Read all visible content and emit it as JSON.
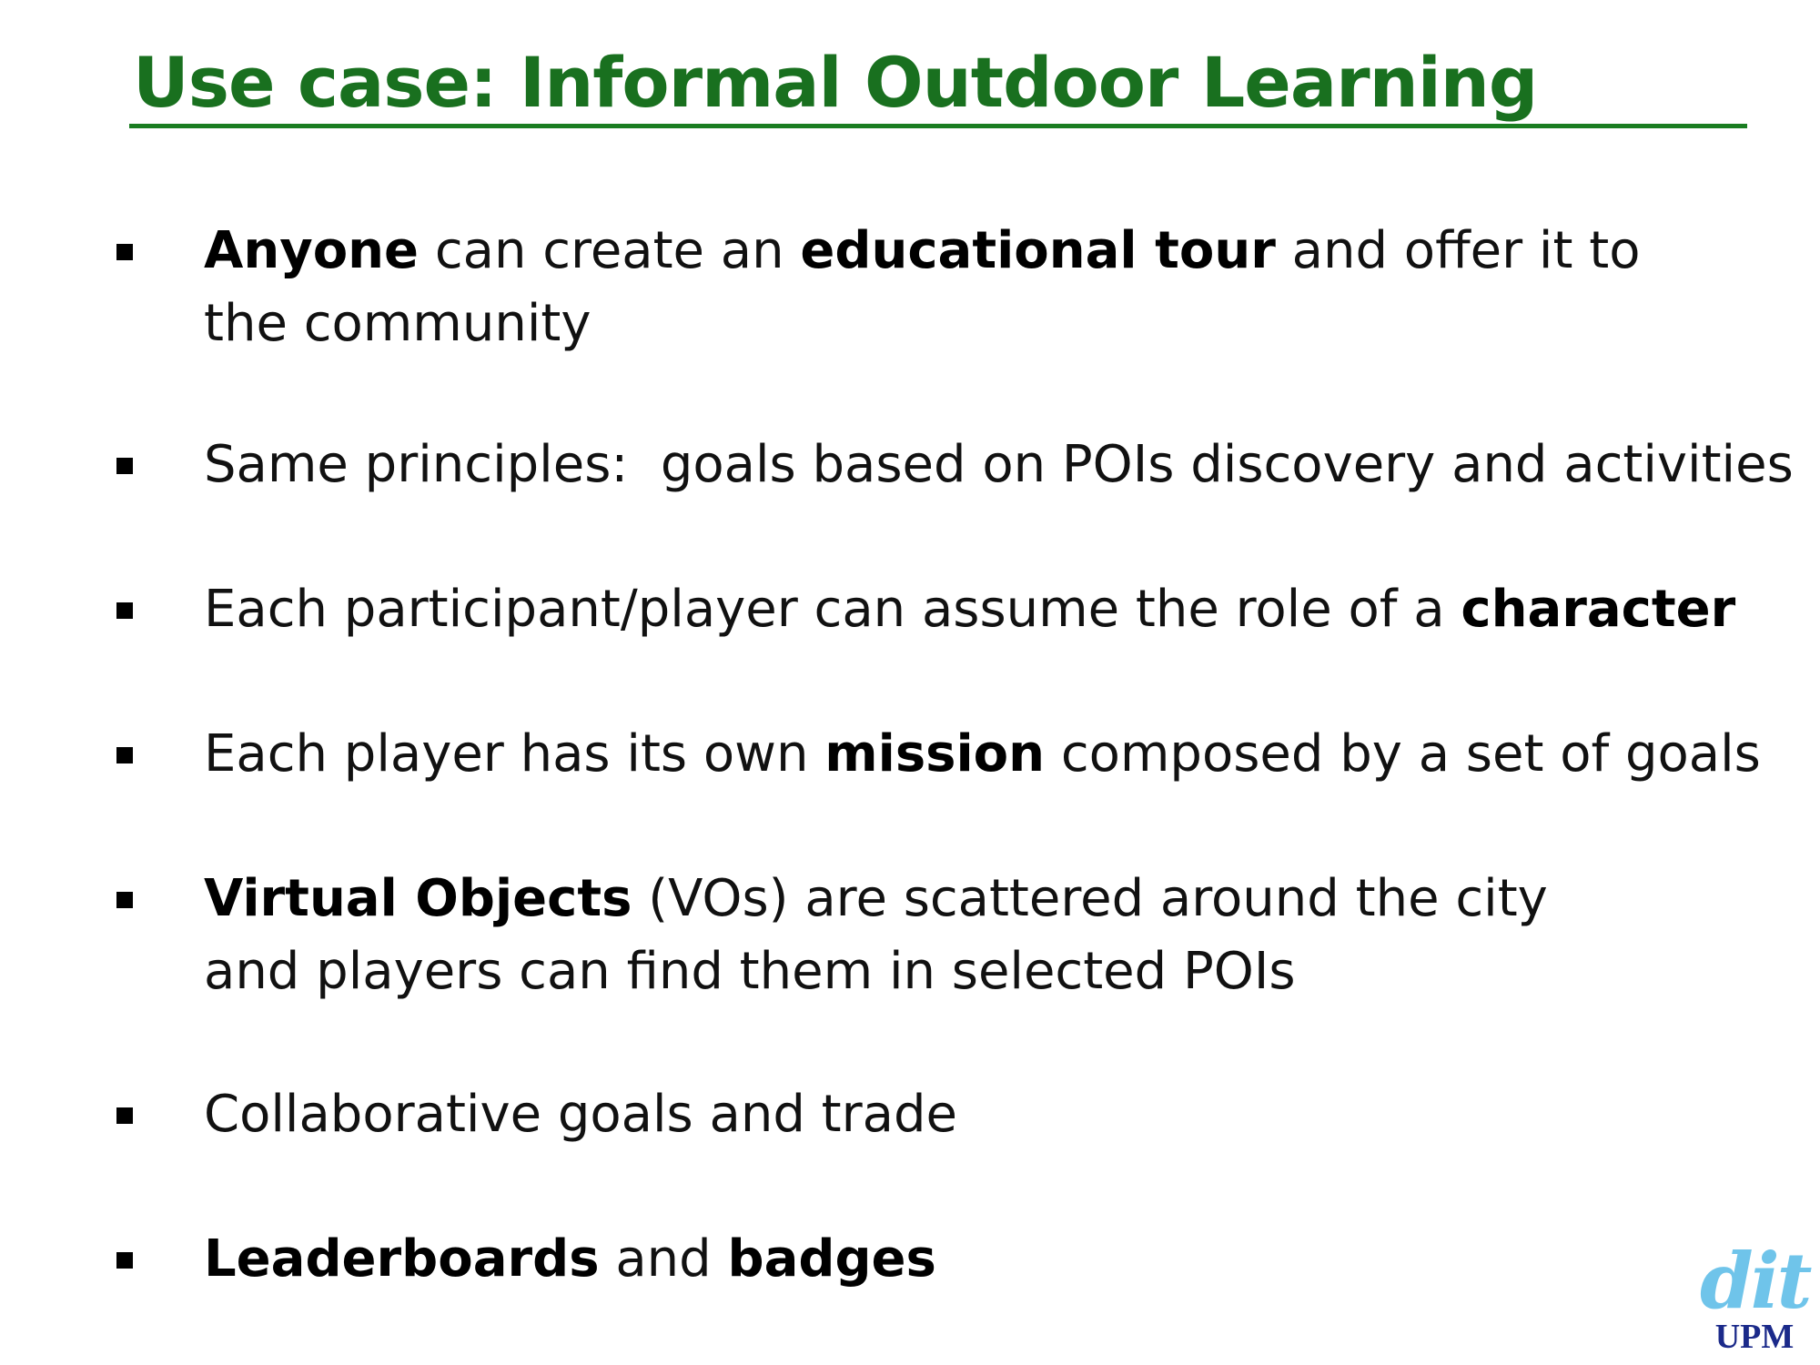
{
  "slide": {
    "title": "Use case: Informal Outdoor Learning",
    "bullets": [
      {
        "parts": [
          {
            "text": "Anyone",
            "bold": true
          },
          {
            "text": " can create an ",
            "bold": false
          },
          {
            "text": "educational tour",
            "bold": true
          },
          {
            "text": " and offer it to the community",
            "bold": false
          }
        ]
      },
      {
        "parts": [
          {
            "text": "Same principles:  goals based on POIs discovery and activities",
            "bold": false
          }
        ]
      },
      {
        "parts": [
          {
            "text": "Each participant/player can assume the role of a ",
            "bold": false
          },
          {
            "text": "character",
            "bold": true
          }
        ]
      },
      {
        "parts": [
          {
            "text": "Each player has its own ",
            "bold": false
          },
          {
            "text": "mission",
            "bold": true
          },
          {
            "text": " composed by a set of goals",
            "bold": false
          }
        ]
      },
      {
        "parts": [
          {
            "text": "Virtual Objects",
            "bold": true
          },
          {
            "text": " (VOs) are scattered around the city and players can find them in selected POIs",
            "bold": false
          }
        ]
      },
      {
        "parts": [
          {
            "text": "Collaborative goals and trade",
            "bold": false
          }
        ]
      },
      {
        "parts": [
          {
            "text": "Leaderboards",
            "bold": true
          },
          {
            "text": " and ",
            "bold": false
          },
          {
            "text": "badges",
            "bold": true
          }
        ]
      }
    ],
    "logo": {
      "mark": "dit",
      "sub": "UPM"
    }
  },
  "colors": {
    "title": "#19701f",
    "rule": "#1a7d21",
    "body_text": "#111111",
    "logo_mark": "#6fc4ea",
    "logo_sub": "#1b2a8a"
  }
}
